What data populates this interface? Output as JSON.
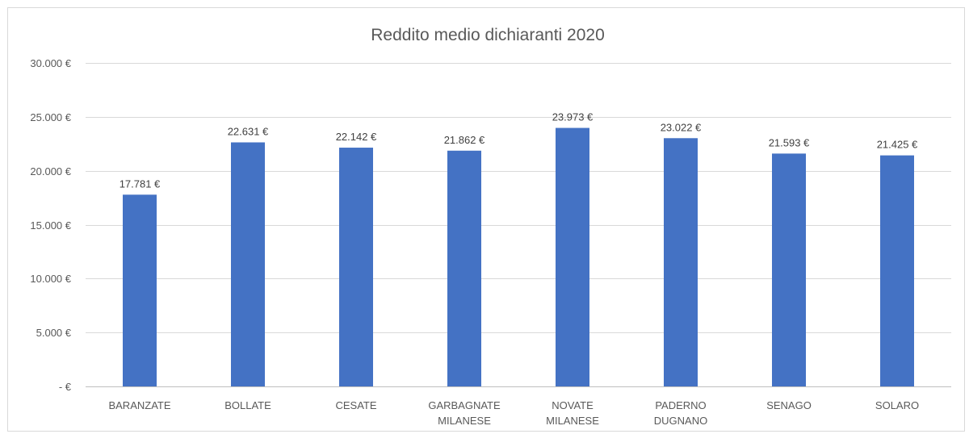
{
  "chart_data": {
    "type": "bar",
    "title": "Reddito medio dichiaranti 2020",
    "categories": [
      [
        "BARANZATE"
      ],
      [
        "BOLLATE"
      ],
      [
        "CESATE"
      ],
      [
        "GARBAGNATE",
        "MILANESE"
      ],
      [
        "NOVATE",
        "MILANESE"
      ],
      [
        "PADERNO",
        "DUGNANO"
      ],
      [
        "SENAGO"
      ],
      [
        "SOLARO"
      ]
    ],
    "values": [
      17781,
      22631,
      22142,
      21862,
      23973,
      23022,
      21593,
      21425
    ],
    "value_labels": [
      "17.781 €",
      "22.631 €",
      "22.142 €",
      "21.862 €",
      "23.973 €",
      "23.022 €",
      "21.593 €",
      "21.425 €"
    ],
    "ylim": [
      0,
      30000
    ],
    "yticks": [
      0,
      5000,
      10000,
      15000,
      20000,
      25000,
      30000
    ],
    "ytick_labels": [
      " -  €",
      "5.000 €",
      "10.000 €",
      "15.000 €",
      "20.000 €",
      "25.000 €",
      "30.000 €"
    ],
    "grid": true,
    "bar_color": "#4472C4"
  }
}
